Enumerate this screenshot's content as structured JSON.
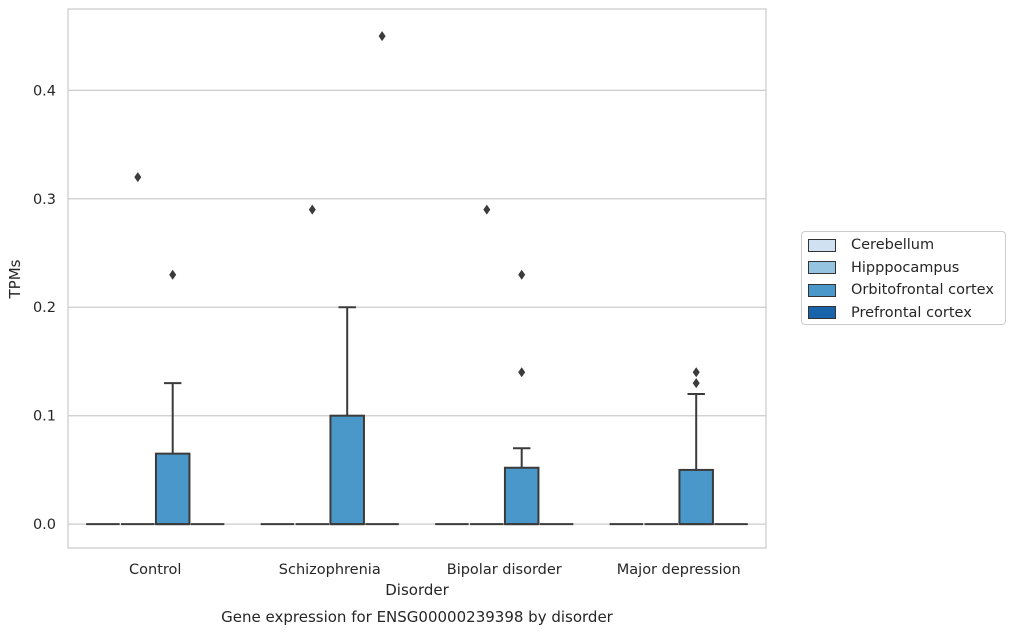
{
  "chart_data": {
    "type": "box",
    "title": "Gene expression for ENSG00000239398 by disorder",
    "xlabel": "Disorder",
    "ylabel": "TPMs",
    "ylim": [
      -0.022,
      0.475
    ],
    "yticks": [
      "0.0",
      "0.1",
      "0.2",
      "0.3",
      "0.4"
    ],
    "categories": [
      "Control",
      "Schizophrenia",
      "Bipolar disorder",
      "Major depression"
    ],
    "grid": "horizontal",
    "legend_position": "right",
    "series": [
      {
        "name": "Cerebellum",
        "color": "#d0e1f2",
        "boxes": [
          {
            "q1": 0,
            "median": 0,
            "q3": 0,
            "whisker_low": 0,
            "whisker_high": 0,
            "outliers": []
          },
          {
            "q1": 0,
            "median": 0,
            "q3": 0,
            "whisker_low": 0,
            "whisker_high": 0,
            "outliers": []
          },
          {
            "q1": 0,
            "median": 0,
            "q3": 0,
            "whisker_low": 0,
            "whisker_high": 0,
            "outliers": []
          },
          {
            "q1": 0,
            "median": 0,
            "q3": 0,
            "whisker_low": 0,
            "whisker_high": 0,
            "outliers": []
          }
        ]
      },
      {
        "name": "Hipppocampus",
        "color": "#94c4df",
        "boxes": [
          {
            "q1": 0,
            "median": 0,
            "q3": 0,
            "whisker_low": 0,
            "whisker_high": 0,
            "outliers": [
              0.32
            ]
          },
          {
            "q1": 0,
            "median": 0,
            "q3": 0,
            "whisker_low": 0,
            "whisker_high": 0,
            "outliers": [
              0.29
            ]
          },
          {
            "q1": 0,
            "median": 0,
            "q3": 0,
            "whisker_low": 0,
            "whisker_high": 0,
            "outliers": [
              0.29
            ]
          },
          {
            "q1": 0,
            "median": 0,
            "q3": 0,
            "whisker_low": 0,
            "whisker_high": 0,
            "outliers": []
          }
        ]
      },
      {
        "name": "Orbitofrontal cortex",
        "color": "#4a98c9",
        "boxes": [
          {
            "q1": 0,
            "median": 0,
            "q3": 0.065,
            "whisker_low": 0,
            "whisker_high": 0.13,
            "outliers": [
              0.23
            ]
          },
          {
            "q1": 0,
            "median": 0,
            "q3": 0.1,
            "whisker_low": 0,
            "whisker_high": 0.2,
            "outliers": []
          },
          {
            "q1": 0,
            "median": 0,
            "q3": 0.052,
            "whisker_low": 0,
            "whisker_high": 0.07,
            "outliers": [
              0.14,
              0.23
            ]
          },
          {
            "q1": 0,
            "median": 0,
            "q3": 0.05,
            "whisker_low": 0,
            "whisker_high": 0.12,
            "outliers": [
              0.13,
              0.14
            ]
          }
        ]
      },
      {
        "name": "Prefrontal cortex",
        "color": "#1764ab",
        "boxes": [
          {
            "q1": 0,
            "median": 0,
            "q3": 0,
            "whisker_low": 0,
            "whisker_high": 0,
            "outliers": []
          },
          {
            "q1": 0,
            "median": 0,
            "q3": 0,
            "whisker_low": 0,
            "whisker_high": 0,
            "outliers": [
              0.45
            ]
          },
          {
            "q1": 0,
            "median": 0,
            "q3": 0,
            "whisker_low": 0,
            "whisker_high": 0,
            "outliers": []
          },
          {
            "q1": 0,
            "median": 0,
            "q3": 0,
            "whisker_low": 0,
            "whisker_high": 0,
            "outliers": []
          }
        ]
      }
    ]
  }
}
